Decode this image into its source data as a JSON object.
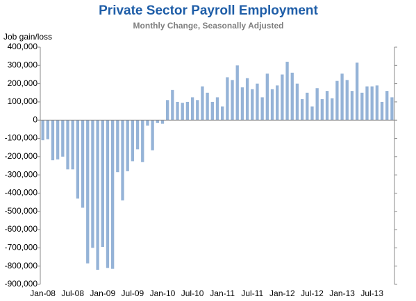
{
  "chart_data": {
    "type": "bar",
    "title": "Private Sector Payroll Employment",
    "subtitle": "Monthly Change, Seasonally Adjusted",
    "y_label": "Job gain/loss",
    "color": "#95b3d7",
    "categories": [
      "Jan-08",
      null,
      null,
      null,
      null,
      null,
      "Jul-08",
      null,
      null,
      null,
      null,
      null,
      "Jan-09",
      null,
      null,
      null,
      null,
      null,
      "Jul-09",
      null,
      null,
      null,
      null,
      null,
      "Jan-10",
      null,
      null,
      null,
      null,
      null,
      "Jul-10",
      null,
      null,
      null,
      null,
      null,
      "Jan-11",
      null,
      null,
      null,
      null,
      null,
      "Jul-11",
      null,
      null,
      null,
      null,
      null,
      "Jan-12",
      null,
      null,
      null,
      null,
      null,
      "Jul-12",
      null,
      null,
      null,
      null,
      null,
      "Jan-13",
      null,
      null,
      null,
      null,
      null,
      "Jul-13",
      null,
      null,
      null,
      null
    ],
    "values": [
      -110000,
      -105000,
      -220000,
      -215000,
      -200000,
      -270000,
      -270000,
      -430000,
      -480000,
      -785000,
      -700000,
      -820000,
      -695000,
      -810000,
      -815000,
      -285000,
      -440000,
      -280000,
      -225000,
      -160000,
      -230000,
      -30000,
      -165000,
      -15000,
      -20000,
      110000,
      165000,
      100000,
      95000,
      100000,
      125000,
      110000,
      185000,
      150000,
      100000,
      125000,
      75000,
      235000,
      220000,
      300000,
      180000,
      230000,
      170000,
      200000,
      125000,
      255000,
      170000,
      190000,
      250000,
      320000,
      260000,
      200000,
      115000,
      150000,
      75000,
      175000,
      115000,
      160000,
      120000,
      215000,
      255000,
      220000,
      160000,
      315000,
      150000,
      185000,
      185000,
      190000,
      100000,
      160000,
      125000
    ],
    "ylim": [
      -900000,
      400000
    ],
    "yticks": [
      {
        "value": -900000,
        "label": "-900,000"
      },
      {
        "value": -800000,
        "label": "-800,000"
      },
      {
        "value": -700000,
        "label": "-700,000"
      },
      {
        "value": -600000,
        "label": "-600,000"
      },
      {
        "value": -500000,
        "label": "-500,000"
      },
      {
        "value": -400000,
        "label": "-400,000"
      },
      {
        "value": -300000,
        "label": "-300,000"
      },
      {
        "value": -200000,
        "label": "-200,000"
      },
      {
        "value": -100000,
        "label": "-100,000"
      },
      0,
      {
        "value": 100000,
        "label": "100,000"
      },
      {
        "value": 200000,
        "label": "200,000"
      },
      {
        "value": 300000,
        "label": "300,000"
      },
      {
        "value": 400000,
        "label": "400,000"
      }
    ],
    "grid": false
  }
}
